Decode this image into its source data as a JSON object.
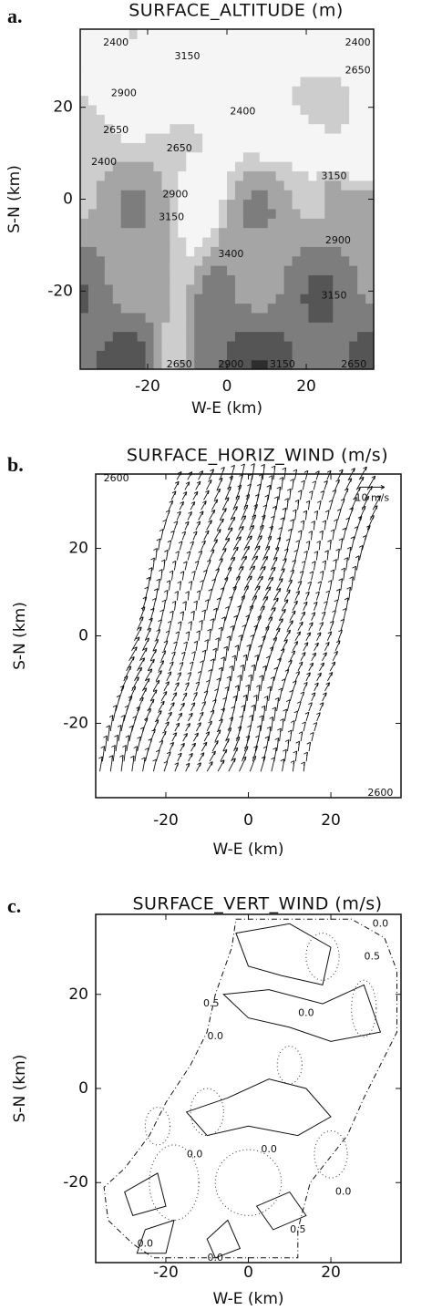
{
  "chart_data": [
    {
      "type": "contour",
      "panel_label": "a.",
      "title": "SURFACE_ALTITUDE (m)",
      "xlabel": "W-E (km)",
      "ylabel": "S-N (km)",
      "xlim": [
        -37,
        37
      ],
      "ylim": [
        -37,
        37
      ],
      "xticks": [
        -20,
        0,
        20
      ],
      "yticks": [
        -20,
        0,
        20
      ],
      "contour_labels": [
        {
          "value": 2400,
          "x": -28,
          "y": 34
        },
        {
          "value": 3150,
          "x": -10,
          "y": 31
        },
        {
          "value": 2400,
          "x": 33,
          "y": 34
        },
        {
          "value": 2650,
          "x": 33,
          "y": 28
        },
        {
          "value": 2900,
          "x": -26,
          "y": 23
        },
        {
          "value": 2650,
          "x": -28,
          "y": 15
        },
        {
          "value": 2400,
          "x": 4,
          "y": 19
        },
        {
          "value": 2650,
          "x": -12,
          "y": 11
        },
        {
          "value": 2400,
          "x": -31,
          "y": 8
        },
        {
          "value": 2900,
          "x": -13,
          "y": 1
        },
        {
          "value": 3150,
          "x": -14,
          "y": -4
        },
        {
          "value": 3150,
          "x": 27,
          "y": 5
        },
        {
          "value": 2900,
          "x": 28,
          "y": -9
        },
        {
          "value": 3150,
          "x": 27,
          "y": -21
        },
        {
          "value": 3400,
          "x": 1,
          "y": -12
        },
        {
          "value": 2650,
          "x": -12,
          "y": -36
        },
        {
          "value": 2900,
          "x": 1,
          "y": -36
        },
        {
          "value": 3150,
          "x": 14,
          "y": -36
        },
        {
          "value": 2650,
          "x": 32,
          "y": -36
        }
      ]
    },
    {
      "type": "quiver",
      "panel_label": "b.",
      "title": "SURFACE_HORIZ_WIND (m/s)",
      "xlabel": "W-E (km)",
      "ylabel": "S-N (km)",
      "xlim": [
        -37,
        37
      ],
      "ylim": [
        -37,
        37
      ],
      "xticks": [
        -20,
        0,
        20
      ],
      "yticks": [
        -20,
        0,
        20
      ],
      "reference_label": "10 m/s",
      "contour_labels": [
        {
          "value": 2600,
          "x": -32,
          "y": 36
        },
        {
          "value": 2600,
          "x": 32,
          "y": -36
        }
      ]
    },
    {
      "type": "contour-lines",
      "panel_label": "c.",
      "title": "SURFACE_VERT_WIND (m/s)",
      "xlabel": "W-E (km)",
      "ylabel": "S-N (km)",
      "xlim": [
        -37,
        37
      ],
      "ylim": [
        -37,
        37
      ],
      "xticks": [
        -20,
        0,
        20
      ],
      "yticks": [
        -20,
        0,
        20
      ],
      "contour_labels": [
        {
          "value": 0.0,
          "label": "0.0",
          "x": 32,
          "y": 35
        },
        {
          "value": 0.5,
          "x": 30,
          "y": 28
        },
        {
          "value": 0.5,
          "x": -9,
          "y": 18
        },
        {
          "value": 0.0,
          "label": "0.0",
          "x": -8,
          "y": 11
        },
        {
          "value": 0.0,
          "label": "0.0",
          "x": 14,
          "y": 16
        },
        {
          "value": 0.0,
          "label": "0.0",
          "x": -13,
          "y": -14
        },
        {
          "value": 0.0,
          "label": "0.0",
          "x": 5,
          "y": -13
        },
        {
          "value": 0.0,
          "label": "0.0",
          "x": 23,
          "y": -22
        },
        {
          "value": 0.5,
          "x": 12,
          "y": -30
        },
        {
          "value": 0.0,
          "label": "0.0",
          "x": -25,
          "y": -33
        },
        {
          "value": 0.0,
          "label": "0.0",
          "x": -8,
          "y": -36
        }
      ]
    }
  ]
}
